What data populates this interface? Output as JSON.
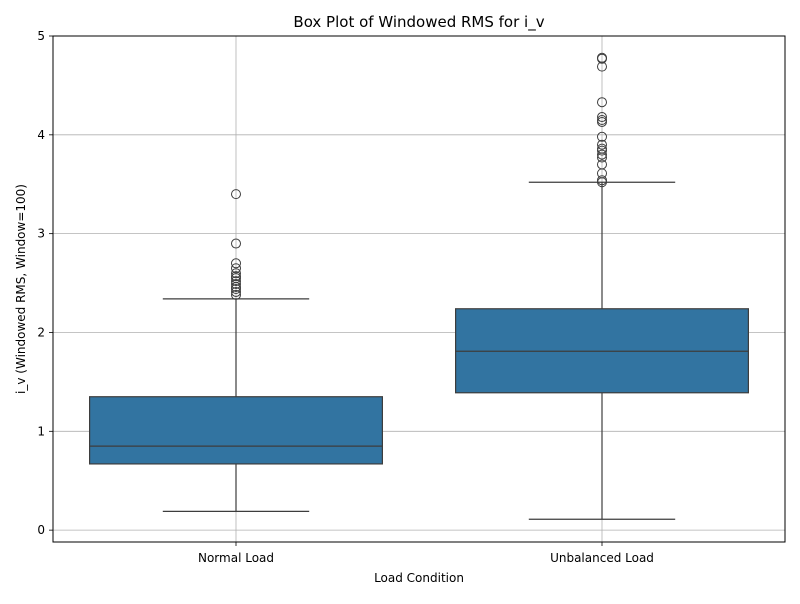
{
  "chart_data": {
    "type": "box",
    "title": "Box Plot of Windowed RMS for i_v",
    "xlabel": "Load Condition",
    "ylabel": "i_v (Windowed RMS, Window=100)",
    "categories": [
      "Normal Load",
      "Unbalanced Load"
    ],
    "ylim": [
      -0.12,
      5.0
    ],
    "yticks": [
      0,
      1,
      2,
      3,
      4,
      5
    ],
    "grid": true,
    "box_color": "#3274a1",
    "line_color": "#3d3d3d",
    "boxes": [
      {
        "category": "Normal Load",
        "whisker_low": 0.19,
        "q1": 0.67,
        "median": 0.85,
        "q3": 1.35,
        "whisker_high": 2.34,
        "outliers": [
          2.38,
          2.41,
          2.44,
          2.46,
          2.49,
          2.52,
          2.55,
          2.57,
          2.6,
          2.65,
          2.7,
          2.9,
          3.4
        ]
      },
      {
        "category": "Unbalanced Load",
        "whisker_low": 0.11,
        "q1": 1.39,
        "median": 1.81,
        "q3": 2.24,
        "whisker_high": 3.52,
        "outliers": [
          3.52,
          3.54,
          3.61,
          3.7,
          3.77,
          3.8,
          3.84,
          3.86,
          3.9,
          3.98,
          4.13,
          4.15,
          4.18,
          4.33,
          4.69,
          4.77,
          4.78
        ]
      }
    ]
  }
}
